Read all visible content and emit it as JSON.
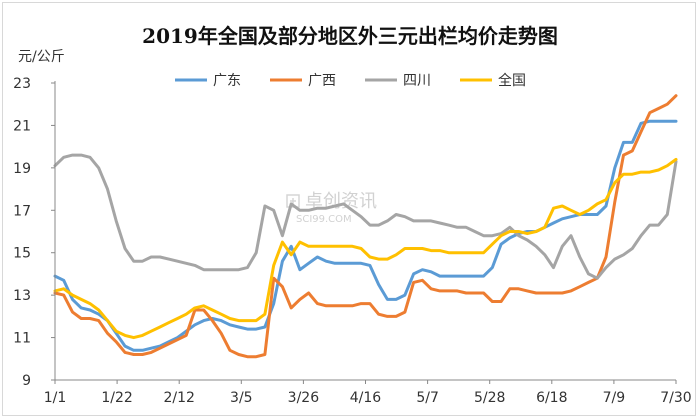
{
  "chart_data": {
    "type": "line",
    "title": "2019年全国及部分地区外三元出栏均价走势图",
    "unit": "元/公斤",
    "ylim": [
      9,
      23
    ],
    "yticks": [
      9,
      11,
      13,
      15,
      17,
      19,
      21,
      23
    ],
    "x_tick_labels": [
      "1/1",
      "1/22",
      "2/12",
      "3/5",
      "3/26",
      "4/16",
      "5/7",
      "5/28",
      "6/18",
      "7/9",
      "7/30"
    ],
    "legend_position": "top",
    "grid": false,
    "series": [
      {
        "name": "广东",
        "color": "#5b9bd5",
        "values": [
          13.9,
          13.7,
          12.8,
          12.4,
          12.3,
          12.1,
          11.8,
          11.2,
          10.6,
          10.4,
          10.4,
          10.5,
          10.6,
          10.8,
          11,
          11.3,
          11.6,
          11.8,
          11.9,
          11.8,
          11.6,
          11.5,
          11.4,
          11.4,
          11.5,
          12.6,
          14.6,
          15.3,
          14.2,
          14.5,
          14.8,
          14.6,
          14.5,
          14.5,
          14.5,
          14.5,
          14.4,
          13.5,
          12.8,
          12.8,
          13,
          14,
          14.2,
          14.1,
          13.9,
          13.9,
          13.9,
          13.9,
          13.9,
          13.9,
          14.3,
          15.4,
          15.7,
          15.9,
          16.0,
          16.0,
          16.2,
          16.4,
          16.6,
          16.7,
          16.8,
          16.8,
          16.8,
          17.2,
          19.0,
          20.2,
          20.2,
          21.1,
          21.2,
          21.2,
          21.2,
          21.2
        ]
      },
      {
        "name": "广西",
        "color": "#ed7d31",
        "values": [
          13.1,
          13.0,
          12.2,
          11.9,
          11.9,
          11.8,
          11.2,
          10.8,
          10.3,
          10.2,
          10.2,
          10.3,
          10.5,
          10.7,
          10.9,
          11.1,
          12.3,
          12.3,
          11.8,
          11.2,
          10.4,
          10.2,
          10.1,
          10.1,
          10.2,
          13.8,
          13.4,
          12.4,
          12.8,
          13.1,
          12.6,
          12.5,
          12.5,
          12.5,
          12.5,
          12.6,
          12.6,
          12.1,
          12.0,
          12.0,
          12.2,
          13.6,
          13.7,
          13.3,
          13.2,
          13.2,
          13.2,
          13.1,
          13.1,
          13.1,
          12.7,
          12.7,
          13.3,
          13.3,
          13.2,
          13.1,
          13.1,
          13.1,
          13.1,
          13.2,
          13.4,
          13.6,
          13.8,
          14.8,
          17.4,
          19.6,
          19.8,
          20.7,
          21.6,
          21.8,
          22.0,
          22.4
        ]
      },
      {
        "name": "四川",
        "color": "#a5a5a5",
        "values": [
          19.1,
          19.5,
          19.6,
          19.6,
          19.5,
          19.0,
          18.0,
          16.5,
          15.2,
          14.6,
          14.6,
          14.8,
          14.8,
          14.7,
          14.6,
          14.5,
          14.4,
          14.2,
          14.2,
          14.2,
          14.2,
          14.2,
          14.3,
          15.0,
          17.2,
          17.0,
          15.8,
          17.3,
          17.0,
          17.0,
          17.1,
          17.1,
          17.2,
          17.3,
          17.0,
          16.7,
          16.3,
          16.3,
          16.5,
          16.8,
          16.7,
          16.5,
          16.5,
          16.5,
          16.4,
          16.3,
          16.2,
          16.2,
          16.0,
          15.8,
          15.8,
          15.9,
          16.2,
          15.8,
          15.6,
          15.3,
          14.9,
          14.3,
          15.3,
          15.8,
          14.8,
          14.0,
          13.8,
          14.3,
          14.7,
          14.9,
          15.2,
          15.8,
          16.3,
          16.3,
          16.8,
          19.3
        ]
      },
      {
        "name": "全国",
        "color": "#ffc000",
        "values": [
          13.2,
          13.3,
          13.0,
          12.8,
          12.6,
          12.3,
          11.8,
          11.3,
          11.1,
          11.0,
          11.1,
          11.3,
          11.5,
          11.7,
          11.9,
          12.1,
          12.4,
          12.5,
          12.3,
          12.1,
          11.9,
          11.8,
          11.8,
          11.8,
          12.1,
          14.4,
          15.5,
          14.9,
          15.5,
          15.3,
          15.3,
          15.3,
          15.3,
          15.3,
          15.3,
          15.2,
          14.8,
          14.7,
          14.7,
          14.9,
          15.2,
          15.2,
          15.2,
          15.1,
          15.1,
          15.0,
          15.0,
          15.0,
          15.0,
          15.0,
          15.4,
          15.8,
          16.0,
          16.0,
          15.9,
          16.0,
          16.2,
          17.1,
          17.2,
          17.0,
          16.8,
          17.0,
          17.3,
          17.5,
          18.3,
          18.7,
          18.7,
          18.8,
          18.8,
          18.9,
          19.1,
          19.4
        ]
      }
    ]
  },
  "watermark": {
    "text_cn": "卓创资讯",
    "text_en": "SCI99.COM",
    "icon": "sci99-logo-icon"
  }
}
